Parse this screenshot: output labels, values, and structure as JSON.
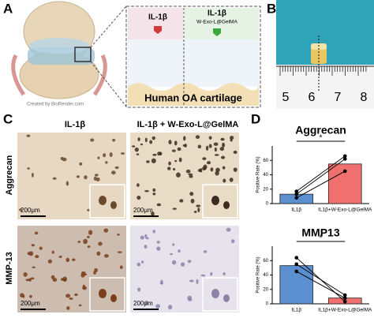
{
  "panels": {
    "A": {
      "label": "A",
      "left_treatment": "IL-1β",
      "right_treatment": "IL-1β",
      "right_treatment_sub": "W-Exo-L@GelMA",
      "caption": "Human OA cartilage",
      "credit": "Created by BioRender.com"
    },
    "B": {
      "label": "B",
      "ruler_numbers": [
        5,
        6,
        7,
        8
      ]
    },
    "C": {
      "label": "C",
      "columns": [
        "IL-1β",
        "IL-1β + W-Exo-L@GelMA"
      ],
      "rows": [
        "Aggrecan",
        "MMP-13"
      ],
      "scale_bar": "200μm"
    },
    "D": {
      "label": "D"
    }
  },
  "chart_data": [
    {
      "type": "bar",
      "title": "Aggrecan",
      "ylabel": "Positive Rate (%)",
      "categories": [
        "IL1β",
        "IL1β+W-Exo-L@GelMA"
      ],
      "values": [
        13,
        55
      ],
      "colors": [
        "#5b8fd0",
        "#f07070"
      ],
      "paired_points": [
        [
          8,
          45
        ],
        [
          13,
          62
        ],
        [
          17,
          66
        ]
      ],
      "significance": "*",
      "ylim": [
        0,
        80
      ],
      "yticks": [
        0,
        20,
        40,
        60
      ]
    },
    {
      "type": "bar",
      "title": "MMP13",
      "ylabel": "Positive Rate (%)",
      "categories": [
        "IL1β",
        "IL1β+W-Exo-L@GelMA"
      ],
      "values": [
        53,
        8
      ],
      "colors": [
        "#5b8fd0",
        "#f07070"
      ],
      "paired_points": [
        [
          64,
          3
        ],
        [
          55,
          12
        ],
        [
          45,
          8
        ]
      ],
      "significance": "*",
      "ylim": [
        0,
        80
      ],
      "yticks": [
        0,
        20,
        40,
        60
      ]
    }
  ]
}
